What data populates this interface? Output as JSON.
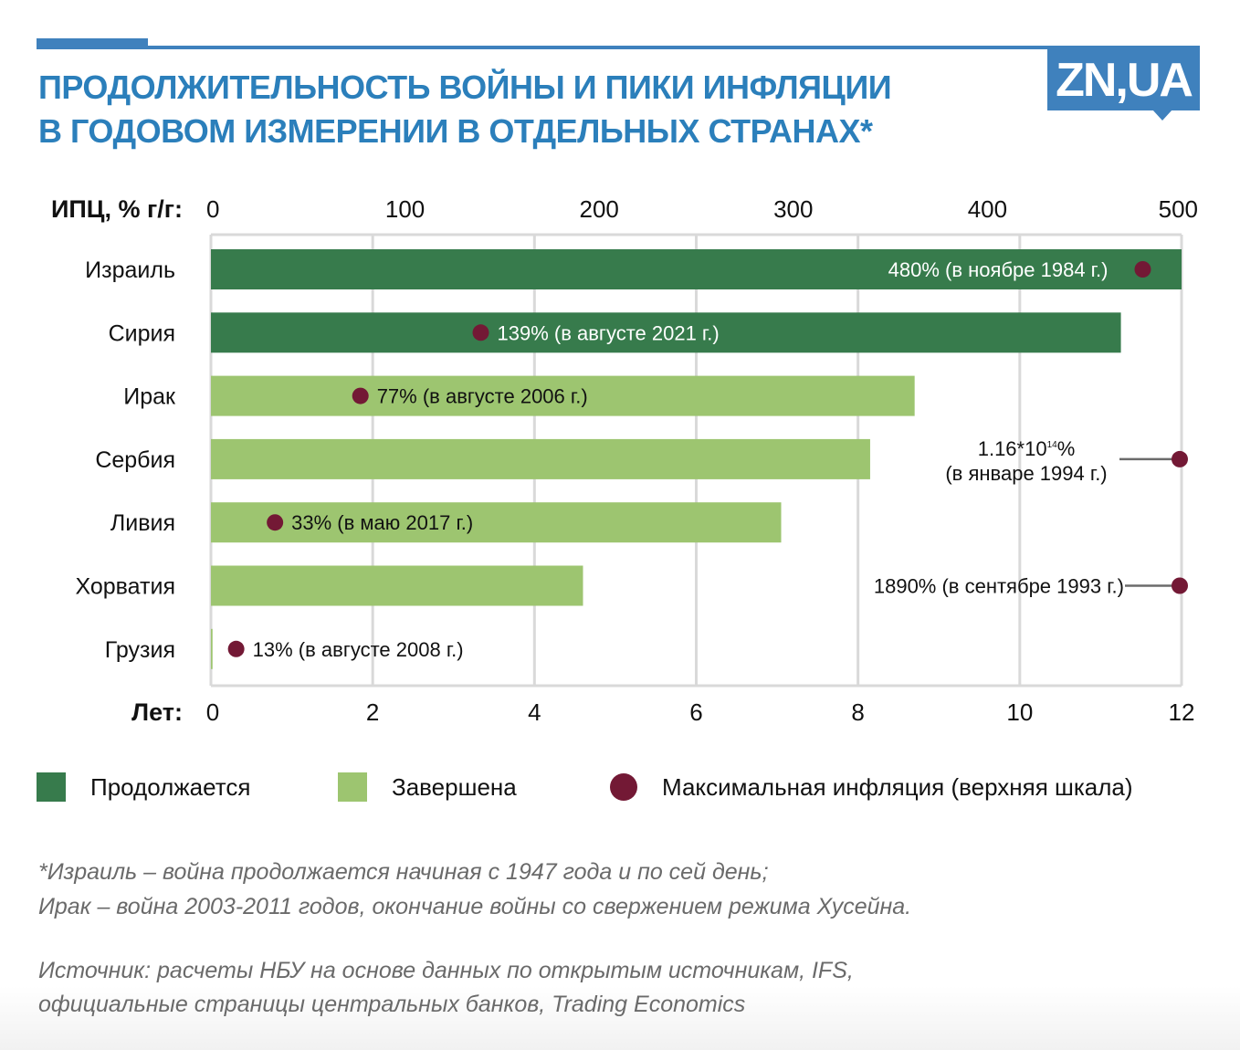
{
  "header": {
    "title_line1": "ПРОДОЛЖИТЕЛЬНОСТЬ ВОЙНЫ И ПИКИ ИНФЛЯЦИИ",
    "title_line2": "В ГОДОВОМ ИЗМЕРЕНИИ В ОТДЕЛЬНЫХ СТРАНАХ*",
    "logo": "ZN,UA"
  },
  "colors": {
    "brand": "#3f81bd",
    "title": "#2b7fbb",
    "ongoing": "#377b4c",
    "finished": "#9dc570",
    "max_inflation": "#731935",
    "grid": "#d9d9d9",
    "leader": "#6b6b6b"
  },
  "chart_data": {
    "type": "bar",
    "orientation": "horizontal",
    "title": "ПРОДОЛЖИТЕЛЬНОСТЬ ВОЙНЫ И ПИКИ ИНФЛЯЦИИ В ГОДОВОМ ИЗМЕРЕНИИ В ОТДЕЛЬНЫХ СТРАНАХ*",
    "top_axis": {
      "label": "ИПЦ, % г/г:",
      "range": [
        0,
        500
      ],
      "ticks": [
        "0",
        "100",
        "200",
        "300",
        "400",
        "500"
      ]
    },
    "bottom_axis": {
      "label": "Лет:",
      "range": [
        0,
        12
      ],
      "ticks": [
        "0",
        "2",
        "4",
        "6",
        "8",
        "10",
        "12"
      ]
    },
    "grid": true,
    "categories": [
      "Израиль",
      "Сирия",
      "Ирак",
      "Сербия",
      "Ливия",
      "Хорватия",
      "Грузия"
    ],
    "series": [
      {
        "name": "Продолжительность войны, лет",
        "values": [
          12,
          11.25,
          8.7,
          8.15,
          7.05,
          4.6,
          0.02
        ],
        "status": [
          "ongoing",
          "ongoing",
          "finished",
          "finished",
          "finished",
          "finished",
          "finished"
        ]
      },
      {
        "name": "Максимальная инфляция, % г/г",
        "values": [
          480,
          139,
          77,
          null,
          33,
          null,
          13
        ],
        "off_scale": [
          false,
          false,
          false,
          true,
          false,
          true,
          false
        ],
        "labels": [
          [
            "480% (в ноябре 1984 г.)"
          ],
          [
            "139% (в августе 2021 г.)"
          ],
          [
            "77% (в августе 2006 г.)"
          ],
          [
            "1.16*10",
            "14",
            "%",
            "(в январе 1994 г.)"
          ],
          [
            "33% (в маю 2017 г.)"
          ],
          [
            "1890% (в сентябре 1993 г.)"
          ],
          [
            "13% (в августе 2008 г.)"
          ]
        ]
      }
    ],
    "legend": {
      "placement": "bottom",
      "items": [
        {
          "label": "Продолжается",
          "kind": "ongoing"
        },
        {
          "label": "Завершена",
          "kind": "finished"
        },
        {
          "label": "Максимальная инфляция (верхняя шкала)",
          "kind": "max_inflation"
        }
      ]
    }
  },
  "notes": {
    "line1": "*Израиль – война продолжается начиная с 1947 года и по сей день;",
    "line2": "Ирак – война 2003-2011 годов, окончание войны со свержением режима Хусейна.",
    "source1": "Источник: расчеты НБУ на основе данных по открытым источникам, IFS,",
    "source2": "официальные страницы центральных банков, Trading Economics"
  }
}
